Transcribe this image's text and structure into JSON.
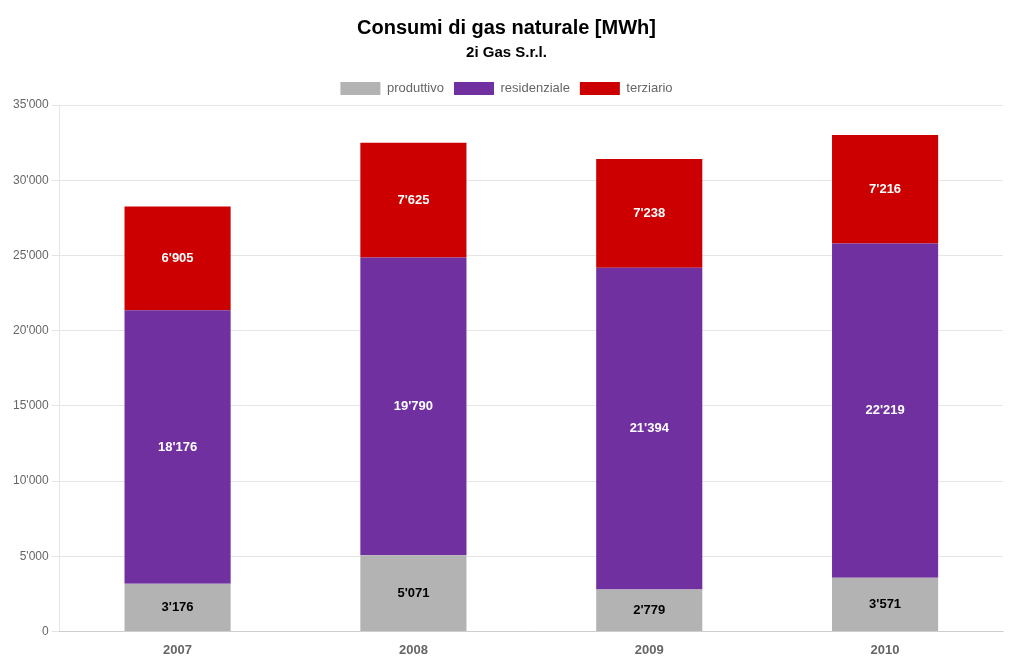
{
  "chart_data": {
    "type": "bar",
    "title": "Consumi di gas naturale [MWh]",
    "subtitle": "2i Gas S.r.l.",
    "categories": [
      "2007",
      "2008",
      "2009",
      "2010"
    ],
    "series": [
      {
        "name": "produttivo",
        "color": "#b3b3b3",
        "values": [
          3176,
          5071,
          2779,
          3571
        ],
        "value_labels": [
          "3'176",
          "5'071",
          "2'779",
          "3'571"
        ]
      },
      {
        "name": "residenziale",
        "color": "#7030a0",
        "values": [
          18176,
          19790,
          21394,
          22219
        ],
        "value_labels": [
          "18'176",
          "19'790",
          "21'394",
          "22'219"
        ]
      },
      {
        "name": "terziario",
        "color": "#cc0000",
        "values": [
          6905,
          7625,
          7238,
          7216
        ],
        "value_labels": [
          "6'905",
          "7'625",
          "7'238",
          "7'216"
        ]
      }
    ],
    "stacked": true,
    "data_labels": true,
    "ylim": [
      0,
      35000
    ],
    "yticks": [
      0,
      {
        "value": 5000,
        "label": "5'000"
      },
      {
        "value": 10000,
        "label": "10'000"
      },
      {
        "value": 15000,
        "label": "15'000"
      },
      {
        "value": 20000,
        "label": "20'000"
      },
      {
        "value": 25000,
        "label": "25'000"
      },
      {
        "value": 30000,
        "label": "30'000"
      },
      {
        "value": 35000,
        "label": "35'000"
      }
    ],
    "grid": true,
    "legend": "top"
  }
}
